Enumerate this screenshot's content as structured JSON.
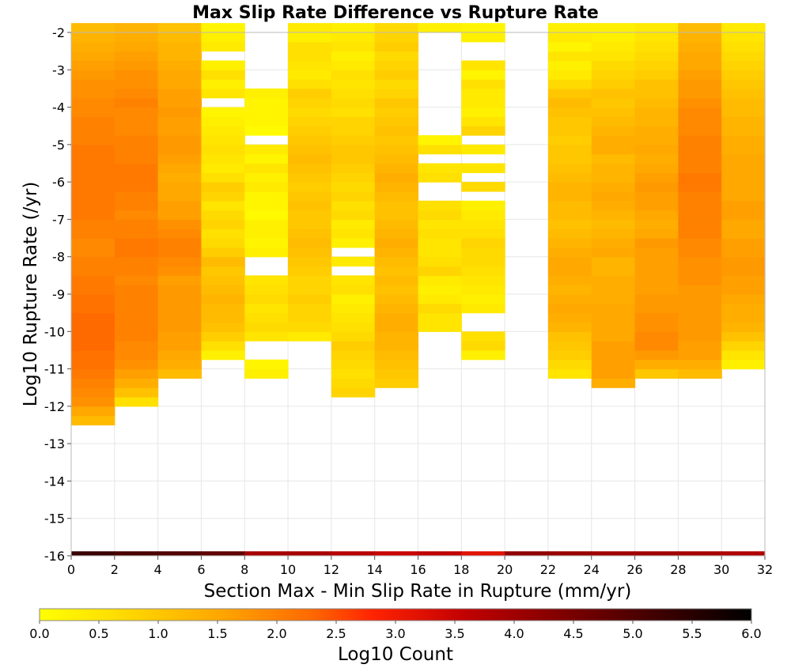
{
  "chart_data": {
    "type": "heatmap",
    "title": "Max Slip Rate Difference vs Rupture Rate",
    "xlabel": "Section Max - Min Slip Rate in Rupture (mm/yr)",
    "ylabel": "Log10 Rupture Rate (/yr)",
    "xlim": [
      0,
      32
    ],
    "ylim": [
      -16,
      -2
    ],
    "x_bin_width": 2,
    "y_bin_width": 0.25,
    "grid": true,
    "xticks": [
      "0",
      "2",
      "4",
      "6",
      "8",
      "10",
      "12",
      "14",
      "16",
      "18",
      "20",
      "22",
      "24",
      "26",
      "28",
      "30",
      "32"
    ],
    "yticks": [
      "-16",
      "-15",
      "-14",
      "-13",
      "-12",
      "-11",
      "-10",
      "-9",
      "-8",
      "-7",
      "-6",
      "-5",
      "-4",
      "-3",
      "-2"
    ],
    "columns_log10_count": [
      [
        null,
        null,
        null,
        null,
        null,
        null,
        null,
        null,
        null,
        null,
        null,
        null,
        null,
        1.2,
        1.5,
        1.8,
        1.9,
        2.0,
        2.1,
        2.2,
        2.2,
        2.3,
        2.3,
        2.3,
        2.3,
        2.2,
        2.2,
        2.1,
        2.1,
        2.0,
        2.0,
        1.9,
        1.9,
        2.0,
        2.0,
        2.1,
        2.1,
        2.1,
        2.1,
        2.1,
        2.1,
        2.1,
        2.1,
        2.0,
        2.0,
        2.0,
        1.9,
        1.9,
        1.8,
        1.8,
        1.7,
        1.6,
        1.5,
        1.4,
        1.3,
        1.2
      ],
      [
        null,
        null,
        null,
        null,
        null,
        null,
        null,
        null,
        null,
        null,
        null,
        null,
        null,
        null,
        null,
        0.6,
        1.1,
        1.4,
        1.6,
        1.8,
        1.9,
        1.9,
        2.0,
        2.0,
        2.0,
        2.0,
        2.0,
        2.0,
        1.9,
        2.0,
        2.0,
        2.1,
        2.1,
        2.0,
        2.0,
        1.9,
        2.0,
        2.0,
        2.1,
        2.1,
        2.1,
        2.0,
        2.0,
        2.0,
        1.9,
        1.9,
        1.9,
        2.0,
        1.9,
        1.8,
        1.8,
        1.7,
        1.6,
        1.5,
        1.4,
        1.3
      ],
      [
        null,
        null,
        null,
        null,
        null,
        null,
        null,
        null,
        null,
        null,
        null,
        null,
        null,
        null,
        null,
        null,
        null,
        null,
        1.2,
        1.4,
        1.5,
        1.6,
        1.6,
        1.7,
        1.7,
        1.7,
        1.7,
        1.7,
        1.6,
        1.8,
        1.9,
        2.0,
        2.0,
        1.9,
        1.8,
        1.6,
        1.6,
        1.5,
        1.5,
        1.4,
        1.5,
        1.6,
        1.7,
        1.7,
        1.6,
        1.6,
        1.7,
        1.6,
        1.6,
        1.5,
        1.5,
        1.4,
        1.3,
        1.3,
        1.2,
        1.1
      ],
      [
        null,
        null,
        null,
        null,
        null,
        null,
        null,
        null,
        null,
        null,
        null,
        null,
        null,
        null,
        null,
        null,
        null,
        null,
        null,
        null,
        0.3,
        0.6,
        0.9,
        1.1,
        1.2,
        1.2,
        1.3,
        1.2,
        1.1,
        1.0,
        1.2,
        0.9,
        0.7,
        0.6,
        0.8,
        0.7,
        0.5,
        0.8,
        0.9,
        0.6,
        0.4,
        0.5,
        0.6,
        0.5,
        0.4,
        0.3,
        0.2,
        null,
        0.5,
        0.3,
        0.6,
        0.3,
        null,
        0.4,
        0.3,
        0.2
      ],
      [
        null,
        null,
        null,
        null,
        null,
        null,
        null,
        null,
        null,
        null,
        null,
        null,
        null,
        null,
        null,
        null,
        null,
        null,
        0.3,
        0.2,
        null,
        null,
        0.5,
        0.7,
        0.6,
        0.5,
        0.7,
        0.6,
        0.5,
        null,
        null,
        0.3,
        0.2,
        0.3,
        0.3,
        0.1,
        0.2,
        0.2,
        0.4,
        0.3,
        0.5,
        0.2,
        0.4,
        null,
        0.1,
        0.2,
        0.2,
        0.2,
        0.3,
        null,
        null,
        null,
        null,
        null,
        null,
        null
      ],
      [
        null,
        null,
        null,
        null,
        null,
        null,
        null,
        null,
        null,
        null,
        null,
        null,
        null,
        null,
        null,
        null,
        null,
        null,
        null,
        null,
        null,
        null,
        0.4,
        0.7,
        0.8,
        0.8,
        0.9,
        0.8,
        0.8,
        0.9,
        1.0,
        1.1,
        1.2,
        1.1,
        1.0,
        1.0,
        1.1,
        1.0,
        0.9,
        1.0,
        1.1,
        1.2,
        1.1,
        1.0,
        0.9,
        0.8,
        0.7,
        0.8,
        0.9,
        0.6,
        0.4,
        0.5,
        0.6,
        0.6,
        0.3,
        0.4
      ],
      [
        null,
        null,
        null,
        null,
        null,
        null,
        null,
        null,
        null,
        null,
        null,
        null,
        null,
        null,
        null,
        null,
        0.8,
        0.7,
        0.6,
        0.7,
        0.8,
        0.9,
        0.7,
        0.6,
        0.5,
        0.4,
        0.3,
        0.6,
        0.5,
        null,
        0.4,
        null,
        0.3,
        0.5,
        0.4,
        0.7,
        0.6,
        0.8,
        0.7,
        0.8,
        0.9,
        1.0,
        1.0,
        0.9,
        0.8,
        0.8,
        0.6,
        0.7,
        0.6,
        0.5,
        0.6,
        0.4,
        0.3,
        0.5,
        0.4,
        0.3
      ],
      [
        null,
        null,
        null,
        null,
        null,
        null,
        null,
        null,
        null,
        null,
        null,
        null,
        null,
        null,
        null,
        null,
        null,
        0.9,
        1.0,
        1.1,
        1.2,
        1.3,
        1.3,
        1.4,
        1.4,
        1.3,
        1.2,
        1.1,
        1.2,
        1.1,
        1.2,
        1.3,
        1.4,
        1.3,
        1.2,
        1.1,
        1.1,
        1.2,
        1.3,
        1.4,
        1.3,
        1.2,
        1.1,
        1.0,
        1.1,
        1.0,
        0.9,
        1.0,
        0.8,
        0.7,
        0.9,
        0.8,
        0.7,
        0.9,
        0.8,
        0.7
      ],
      [
        null,
        null,
        null,
        null,
        null,
        null,
        null,
        null,
        null,
        null,
        null,
        null,
        null,
        null,
        null,
        null,
        null,
        null,
        null,
        null,
        null,
        null,
        null,
        0.5,
        0.5,
        0.7,
        0.4,
        0.3,
        0.4,
        0.8,
        0.6,
        0.5,
        0.5,
        0.6,
        0.5,
        0.7,
        0.6,
        null,
        null,
        0.6,
        0.5,
        null,
        0.6,
        0.2,
        null,
        null,
        null,
        null,
        null,
        null,
        null,
        null,
        null,
        null,
        null,
        0.3
      ],
      [
        null,
        null,
        null,
        null,
        null,
        null,
        null,
        null,
        null,
        null,
        null,
        null,
        null,
        null,
        null,
        null,
        null,
        null,
        null,
        null,
        0.3,
        0.7,
        0.6,
        null,
        null,
        0.4,
        0.3,
        0.4,
        0.5,
        0.6,
        0.7,
        0.7,
        0.8,
        0.6,
        0.5,
        0.4,
        0.3,
        null,
        0.7,
        null,
        0.5,
        null,
        0.4,
        null,
        0.8,
        0.5,
        0.3,
        0.4,
        0.4,
        0.6,
        0.2,
        0.5,
        null,
        null,
        0.3,
        0.2
      ],
      [
        null,
        null,
        null,
        null,
        null,
        null,
        null,
        null,
        null,
        null,
        null,
        null,
        null,
        null,
        null,
        null,
        null,
        null,
        null,
        null,
        null,
        null,
        null,
        null,
        null,
        null,
        null,
        null,
        null,
        null,
        null,
        null,
        null,
        null,
        null,
        null,
        null,
        null,
        null,
        null,
        null,
        null,
        null,
        null,
        null,
        null,
        null,
        null,
        null,
        null,
        null,
        null,
        null,
        null,
        null,
        null
      ],
      [
        null,
        null,
        null,
        null,
        null,
        null,
        null,
        null,
        null,
        null,
        null,
        null,
        null,
        null,
        null,
        null,
        null,
        null,
        0.5,
        0.7,
        0.9,
        1.0,
        1.1,
        1.3,
        1.4,
        1.5,
        1.4,
        1.3,
        1.4,
        1.5,
        1.5,
        1.4,
        1.3,
        1.2,
        1.1,
        1.2,
        1.2,
        1.3,
        1.3,
        1.2,
        1.1,
        1.0,
        1.0,
        0.9,
        1.0,
        1.0,
        1.1,
        1.2,
        1.0,
        0.7,
        0.4,
        0.3,
        0.5,
        0.2,
        0.4,
        0.3
      ],
      [
        null,
        null,
        null,
        null,
        null,
        null,
        null,
        null,
        null,
        null,
        null,
        null,
        null,
        null,
        null,
        null,
        null,
        1.4,
        1.6,
        1.6,
        1.6,
        1.6,
        1.5,
        1.5,
        1.5,
        1.5,
        1.4,
        1.4,
        1.4,
        1.3,
        1.3,
        1.5,
        1.4,
        1.3,
        1.2,
        1.3,
        1.4,
        1.5,
        1.4,
        1.3,
        1.3,
        1.2,
        1.4,
        1.4,
        1.3,
        1.2,
        1.1,
        1.0,
        1.1,
        0.9,
        0.8,
        0.7,
        0.5,
        0.4,
        0.3,
        0.3
      ],
      [
        null,
        null,
        null,
        null,
        null,
        null,
        null,
        null,
        null,
        null,
        null,
        null,
        null,
        null,
        null,
        null,
        null,
        null,
        1.0,
        1.4,
        1.7,
        1.9,
        1.9,
        1.8,
        1.8,
        1.7,
        1.7,
        1.6,
        1.6,
        1.6,
        1.6,
        1.6,
        1.7,
        1.5,
        1.4,
        1.5,
        1.6,
        1.6,
        1.7,
        1.6,
        1.5,
        1.4,
        1.5,
        1.4,
        1.4,
        1.3,
        1.3,
        1.2,
        1.1,
        1.1,
        0.9,
        0.8,
        0.7,
        0.6,
        0.5,
        0.4
      ],
      [
        null,
        null,
        null,
        null,
        null,
        null,
        null,
        null,
        null,
        null,
        null,
        null,
        null,
        null,
        null,
        null,
        null,
        null,
        1.2,
        1.4,
        1.6,
        1.6,
        1.7,
        1.7,
        1.7,
        1.7,
        1.7,
        1.7,
        1.8,
        1.8,
        1.8,
        1.9,
        1.9,
        2.0,
        2.0,
        2.0,
        2.0,
        2.0,
        2.1,
        2.1,
        2.0,
        2.0,
        2.0,
        2.0,
        1.9,
        1.9,
        1.9,
        1.8,
        1.7,
        1.7,
        1.6,
        1.5,
        1.5,
        1.4,
        1.3,
        1.2
      ],
      [
        null,
        null,
        null,
        null,
        null,
        null,
        null,
        null,
        null,
        null,
        null,
        null,
        null,
        null,
        null,
        null,
        null,
        null,
        null,
        0.3,
        0.5,
        0.8,
        1.1,
        1.3,
        1.4,
        1.4,
        1.5,
        1.6,
        1.6,
        1.7,
        1.7,
        1.6,
        1.6,
        1.5,
        1.5,
        1.6,
        1.6,
        1.5,
        1.5,
        1.5,
        1.5,
        1.5,
        1.4,
        1.4,
        1.3,
        1.3,
        1.2,
        1.2,
        1.1,
        1.0,
        0.9,
        0.8,
        0.7,
        0.6,
        0.5,
        0.4
      ]
    ],
    "bottom_row_log10_count": [
      5.3,
      5.1,
      5.0,
      4.8,
      3.9,
      3.9,
      3.7,
      3.5,
      3.6,
      3.2,
      4.2,
      4.1,
      4.0,
      4.0,
      3.9,
      3.8
    ],
    "colorbar": {
      "label": "Log10 Count",
      "range": [
        0,
        6
      ],
      "ticks": [
        "0.0",
        "0.5",
        "1.0",
        "1.5",
        "2.0",
        "2.5",
        "3.0",
        "3.5",
        "4.0",
        "4.5",
        "5.0",
        "5.5",
        "6.0"
      ],
      "stops": [
        "#ffff00",
        "#ffd700",
        "#ff8c00",
        "#ff3300",
        "#cc0000",
        "#7a0000",
        "#000000"
      ]
    }
  }
}
